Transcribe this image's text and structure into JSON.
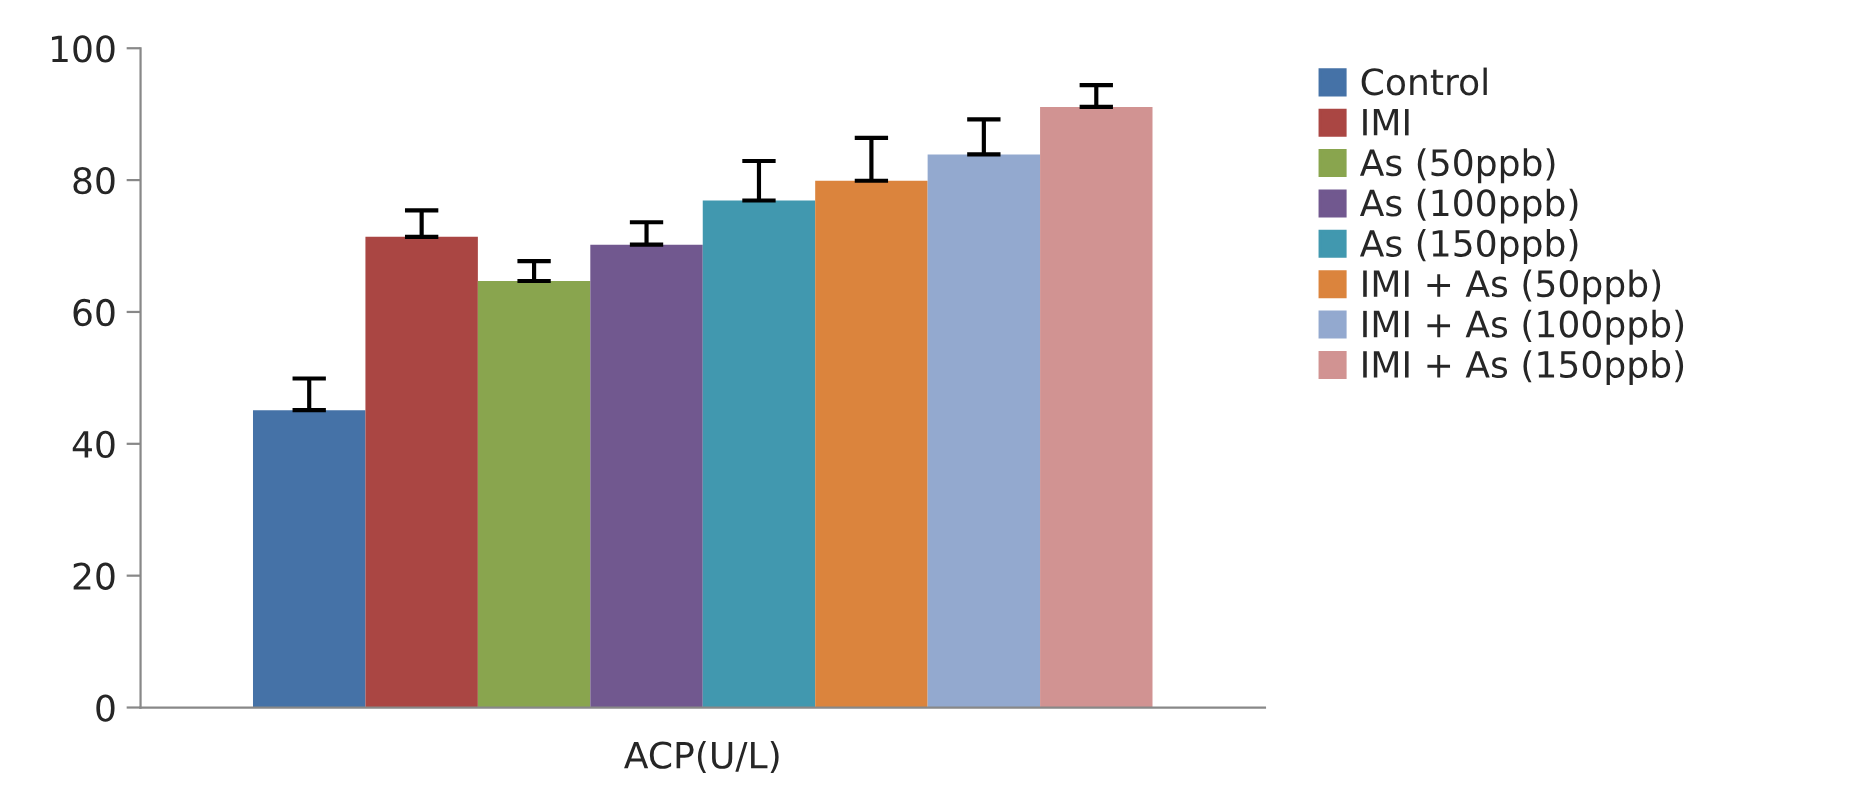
{
  "chart_data": {
    "type": "bar",
    "categories": [
      "ACP(U/L)"
    ],
    "ylim": [
      0,
      100
    ],
    "yticks": [
      0,
      20,
      40,
      60,
      80,
      100
    ],
    "grid": false,
    "legend": "right",
    "series": [
      {
        "name": "Control",
        "color": "#4572a7",
        "values": [
          45.1
        ],
        "errors": [
          [
            45.1,
            49.9
          ]
        ]
      },
      {
        "name": "IMI",
        "color": "#aa4643",
        "values": [
          71.4
        ],
        "errors": [
          [
            71.4,
            75.4
          ]
        ]
      },
      {
        "name": "As (50ppb)",
        "color": "#89a54e",
        "values": [
          64.7
        ],
        "errors": [
          [
            64.7,
            67.7
          ]
        ]
      },
      {
        "name": "As (100ppb)",
        "color": "#71588f",
        "values": [
          70.2
        ],
        "errors": [
          [
            70.2,
            73.6
          ]
        ]
      },
      {
        "name": "As (150ppb)",
        "color": "#4198af",
        "values": [
          76.9
        ],
        "errors": [
          [
            76.9,
            82.9
          ]
        ]
      },
      {
        "name": "IMI + As (50ppb)",
        "color": "#db843d",
        "values": [
          79.9
        ],
        "errors": [
          [
            79.9,
            86.4
          ]
        ]
      },
      {
        "name": "IMI + As (100ppb)",
        "color": "#93a9cf",
        "values": [
          83.9
        ],
        "errors": [
          [
            83.9,
            89.2
          ]
        ]
      },
      {
        "name": "IMI + As (150ppb)",
        "color": "#d19392",
        "values": [
          91.1
        ],
        "errors": [
          [
            91.1,
            94.4
          ]
        ]
      }
    ]
  }
}
